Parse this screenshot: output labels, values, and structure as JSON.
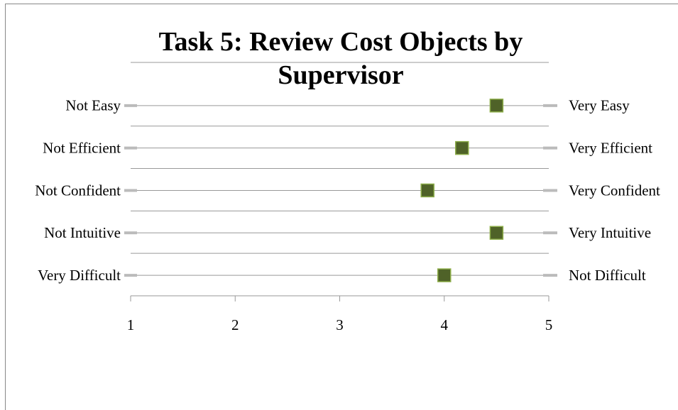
{
  "chart_data": {
    "type": "dot",
    "title": "Task 5: Review Cost Objects by Supervisor",
    "categories": [
      "Not Easy",
      "Not Efficient",
      "Not Confident",
      "Not Intuitive",
      "Very Difficult"
    ],
    "right_labels": [
      "Very Easy",
      "Very Efficient",
      "Very Confident",
      "Very Intuitive",
      "Not Difficult"
    ],
    "values": [
      4.5,
      4.17,
      3.84,
      4.5,
      4.0
    ],
    "color": "#4f6228",
    "xlim": [
      1,
      5
    ],
    "xticks": [
      1,
      2,
      3,
      4,
      5
    ]
  }
}
